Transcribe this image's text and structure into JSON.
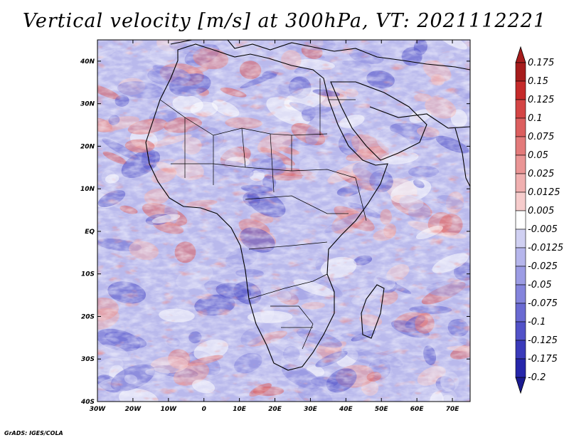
{
  "title": "Vertical velocity [m/s] at 300hPa, VT: 2021112221",
  "credit": "GrADS: IGES/COLA",
  "map": {
    "lat_labels": [
      "40N",
      "30N",
      "20N",
      "10N",
      "EQ",
      "10S",
      "20S",
      "30S",
      "40S"
    ],
    "lat_values": [
      40,
      30,
      20,
      10,
      0,
      -10,
      -20,
      -30,
      -40
    ],
    "lon_labels": [
      "30W",
      "20W",
      "10W",
      "0",
      "10E",
      "20E",
      "30E",
      "40E",
      "50E",
      "60E",
      "70E"
    ],
    "lon_values": [
      -30,
      -20,
      -10,
      0,
      10,
      20,
      30,
      40,
      50,
      60,
      70
    ],
    "extent": {
      "lon_min": -30,
      "lon_max": 75,
      "lat_min": -40,
      "lat_max": 45
    }
  },
  "colorbar": {
    "labels": [
      "0.175",
      "0.15",
      "0.125",
      "0.1",
      "0.075",
      "0.05",
      "0.025",
      "0.0125",
      "0.005",
      "-0.005",
      "-0.0125",
      "-0.025",
      "-0.05",
      "-0.075",
      "-0.1",
      "-0.125",
      "-0.175",
      "-0.2"
    ],
    "colors": [
      "#a61c1c",
      "#c52a2a",
      "#d44545",
      "#dc5f5f",
      "#e37a7a",
      "#ea9595",
      "#f0b0b0",
      "#f6cccc",
      "#ffffff",
      "#d0d0f2",
      "#b6b6ec",
      "#9c9ce4",
      "#8484dc",
      "#6a6ad2",
      "#5252c8",
      "#3a3aba",
      "#2626aa"
    ],
    "max_color": "#a61c1c",
    "min_color": "#1a1a90"
  },
  "colors": {
    "positive": "#e06060",
    "negative": "#6060d0",
    "background": "#c8c8f0"
  }
}
